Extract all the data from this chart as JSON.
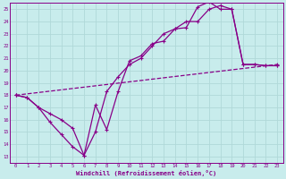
{
  "background_color": "#c8ecec",
  "grid_color": "#b0d8d8",
  "line_color": "#880088",
  "xlim": [
    -0.5,
    23.5
  ],
  "ylim": [
    12.5,
    25.5
  ],
  "xlabel": "Windchill (Refroidissement éolien,°C)",
  "xticks": [
    0,
    1,
    2,
    3,
    4,
    5,
    6,
    7,
    8,
    9,
    10,
    11,
    12,
    13,
    14,
    15,
    16,
    17,
    18,
    19,
    20,
    21,
    22,
    23
  ],
  "yticks": [
    13,
    14,
    15,
    16,
    17,
    18,
    19,
    20,
    21,
    22,
    23,
    24,
    25
  ],
  "line1_x": [
    0,
    1,
    2,
    3,
    4,
    5,
    6,
    7,
    8,
    9,
    10,
    11,
    12,
    13,
    14,
    15,
    16,
    17,
    18,
    19,
    20,
    21,
    22,
    23
  ],
  "line1_y": [
    18.0,
    17.8,
    17.0,
    15.8,
    14.8,
    13.8,
    13.1,
    17.2,
    15.2,
    18.3,
    20.8,
    21.2,
    22.2,
    22.4,
    23.4,
    23.5,
    25.2,
    25.6,
    25.0,
    25.0,
    20.5,
    20.5,
    20.4,
    20.4
  ],
  "line2_x": [
    0,
    1,
    2,
    3,
    4,
    5,
    6,
    7,
    8,
    9,
    10,
    11,
    12,
    13,
    14,
    15,
    16,
    17,
    18,
    19,
    20,
    21,
    22,
    23
  ],
  "line2_y": [
    18.0,
    17.8,
    17.0,
    16.5,
    16.0,
    15.3,
    13.1,
    15.0,
    18.3,
    19.5,
    20.5,
    21.0,
    22.0,
    23.0,
    23.4,
    24.0,
    24.0,
    25.0,
    25.3,
    25.0,
    20.5,
    20.5,
    20.4,
    20.4
  ],
  "line3_x": [
    0,
    23
  ],
  "line3_y": [
    18.0,
    20.5
  ]
}
